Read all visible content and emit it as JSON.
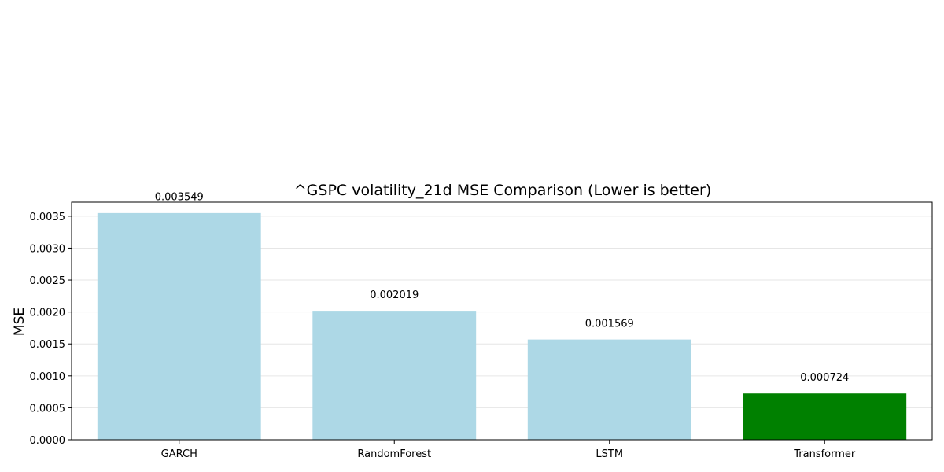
{
  "chart_data": {
    "type": "bar",
    "title": "^GSPC volatility_21d MSE Comparison (Lower is better)",
    "xlabel": "",
    "ylabel": "MSE",
    "categories": [
      "GARCH",
      "RandomForest",
      "LSTM",
      "Transformer"
    ],
    "values": [
      0.003549,
      0.002019,
      0.001569,
      0.000724
    ],
    "value_labels": [
      "0.003549",
      "0.002019",
      "0.001569",
      "0.000724"
    ],
    "bar_colors": [
      "#add8e6",
      "#add8e6",
      "#add8e6",
      "#008000"
    ],
    "ylim": [
      0,
      0.00372
    ],
    "yticks": [
      0,
      0.0005,
      0.001,
      0.0015,
      0.002,
      0.0025,
      0.003,
      0.0035
    ],
    "ytick_labels": [
      "0.0000",
      "0.0005",
      "0.0010",
      "0.0015",
      "0.0020",
      "0.0025",
      "0.0030",
      "0.0035"
    ],
    "grid": "horizontal",
    "legend": "none"
  }
}
